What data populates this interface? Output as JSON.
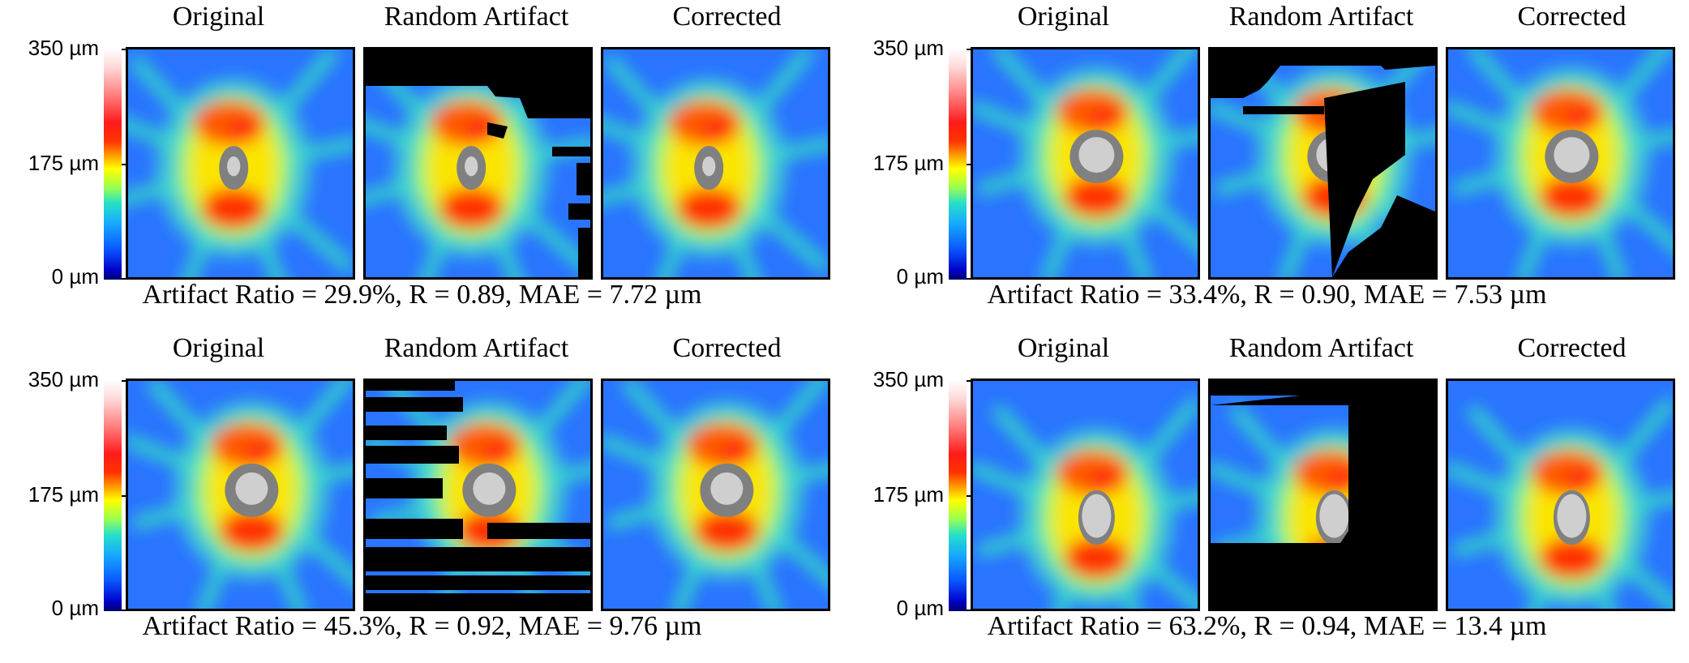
{
  "column_titles": [
    "Original",
    "Random Artifact",
    "Corrected"
  ],
  "colorbar": {
    "ticks": [
      "350 µm",
      "175 µm",
      "0 µm"
    ],
    "colors": [
      "#ffffff",
      "#ff1a1a",
      "#ffff00",
      "#16a8ff",
      "#0000c8"
    ]
  },
  "panels": [
    {
      "caption": "Artifact Ratio = 29.9%, R = 0.89, MAE = 7.72 µm"
    },
    {
      "caption": "Artifact Ratio = 33.4%, R = 0.90, MAE = 7.53 µm"
    },
    {
      "caption": "Artifact Ratio = 45.3%, R = 0.92, MAE = 9.76 µm"
    },
    {
      "caption": "Artifact Ratio = 63.2%, R = 0.94, MAE = 13.4 µm"
    }
  ]
}
